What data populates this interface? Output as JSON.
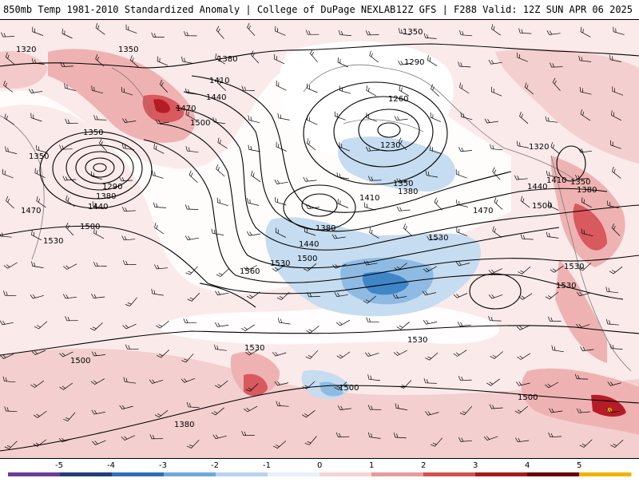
{
  "header": {
    "left_title": "850mb Temp 1981-2010 Standardized Anomaly | College of DuPage NEXLAB",
    "right_title": "12Z GFS | F288 Valid: 12Z SUN APR 06 2025"
  },
  "contour_labels": [
    "1320",
    "1350",
    "1380",
    "1410",
    "1440",
    "1470",
    "1500",
    "1350",
    "1350",
    "1290",
    "1380",
    "1440",
    "1470",
    "1500",
    "1530",
    "1560",
    "1530",
    "1500",
    "1410",
    "1380",
    "1350",
    "1380",
    "1440",
    "1260",
    "1230",
    "1290",
    "1350",
    "1320",
    "1410",
    "1350",
    "1380",
    "1500",
    "1440",
    "1470",
    "1530",
    "1530",
    "1530",
    "1530",
    "1530",
    "1500",
    "1500",
    "1500",
    "1380"
  ],
  "colorbar": {
    "ticks": [
      "-5",
      "-4",
      "-3",
      "-2",
      "-1",
      "0",
      "1",
      "2",
      "3",
      "4",
      "5"
    ],
    "colors": [
      "#6a3d9a",
      "#243c7c",
      "#2f6fba",
      "#6fa8dc",
      "#b7d3ee",
      "#e8f1fa",
      "#f6d3d3",
      "#e79b9b",
      "#d45050",
      "#a81a1a",
      "#6a0000",
      "#f0b400"
    ]
  },
  "legend_colors": {
    "cold_light": "#c6dcf0",
    "cold_mid": "#8fbbe3",
    "cold_strong": "#3f86c8",
    "warm_light": "#f9dede",
    "warm_mid": "#efb2b2",
    "warm_strong": "#d8595e",
    "warm_extreme": "#9e0a14"
  }
}
